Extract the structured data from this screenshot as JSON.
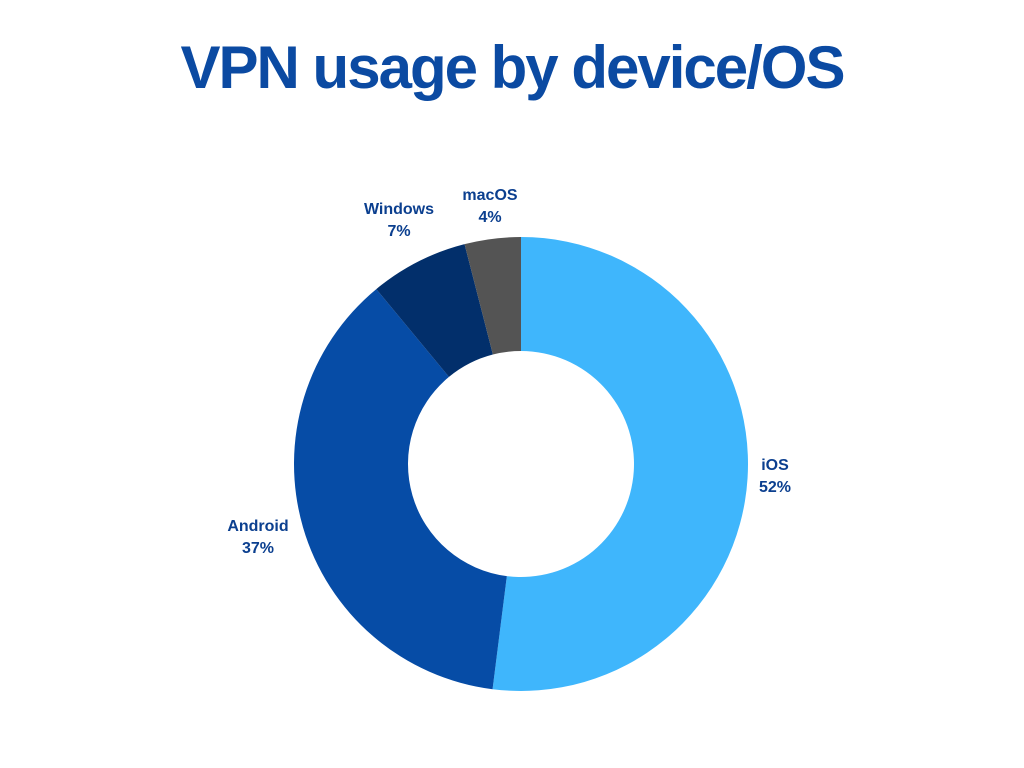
{
  "chart_data": {
    "type": "pie",
    "title": "VPN usage by device/OS",
    "categories": [
      "iOS",
      "Android",
      "Windows",
      "macOS"
    ],
    "values": [
      52,
      37,
      7,
      4
    ],
    "value_labels": [
      "52%",
      "37%",
      "7%",
      "4%"
    ],
    "unit": "%",
    "donut": true,
    "colors": [
      "#3fb6fc",
      "#064ca6",
      "#022f6b",
      "#545454"
    ],
    "label_color": "#0b3f8f"
  },
  "colors": {
    "title": "#0b4aa2",
    "background": "#ffffff"
  }
}
